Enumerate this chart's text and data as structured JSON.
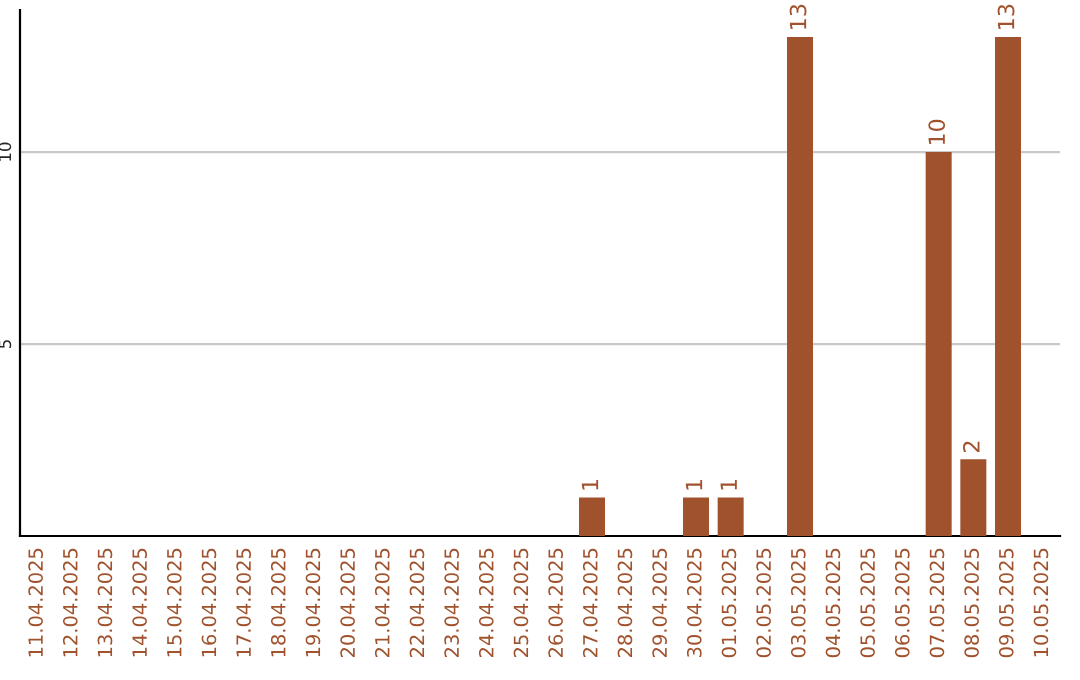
{
  "chart_data": {
    "type": "bar",
    "categories": [
      "11.04.2025",
      "12.04.2025",
      "13.04.2025",
      "14.04.2025",
      "15.04.2025",
      "16.04.2025",
      "17.04.2025",
      "18.04.2025",
      "19.04.2025",
      "20.04.2025",
      "21.04.2025",
      "22.04.2025",
      "23.04.2025",
      "24.04.2025",
      "25.04.2025",
      "26.04.2025",
      "27.04.2025",
      "28.04.2025",
      "29.04.2025",
      "30.04.2025",
      "01.05.2025",
      "02.05.2025",
      "03.05.2025",
      "04.05.2025",
      "05.05.2025",
      "06.05.2025",
      "07.05.2025",
      "08.05.2025",
      "09.05.2025",
      "10.05.2025"
    ],
    "values": [
      0,
      0,
      0,
      0,
      0,
      0,
      0,
      0,
      0,
      0,
      0,
      0,
      0,
      0,
      0,
      0,
      1,
      0,
      0,
      1,
      1,
      0,
      13,
      0,
      0,
      0,
      10,
      2,
      13,
      0
    ],
    "value_labels": [
      null,
      null,
      null,
      null,
      null,
      null,
      null,
      null,
      null,
      null,
      null,
      null,
      null,
      null,
      null,
      null,
      "1",
      null,
      null,
      "1",
      "1",
      null,
      "13",
      null,
      null,
      null,
      "10",
      "2",
      "13",
      null
    ],
    "color": "#a0522d",
    "ylim": [
      0,
      13.7
    ],
    "yticks": [
      5,
      10
    ],
    "grid": "y",
    "legend": false
  }
}
